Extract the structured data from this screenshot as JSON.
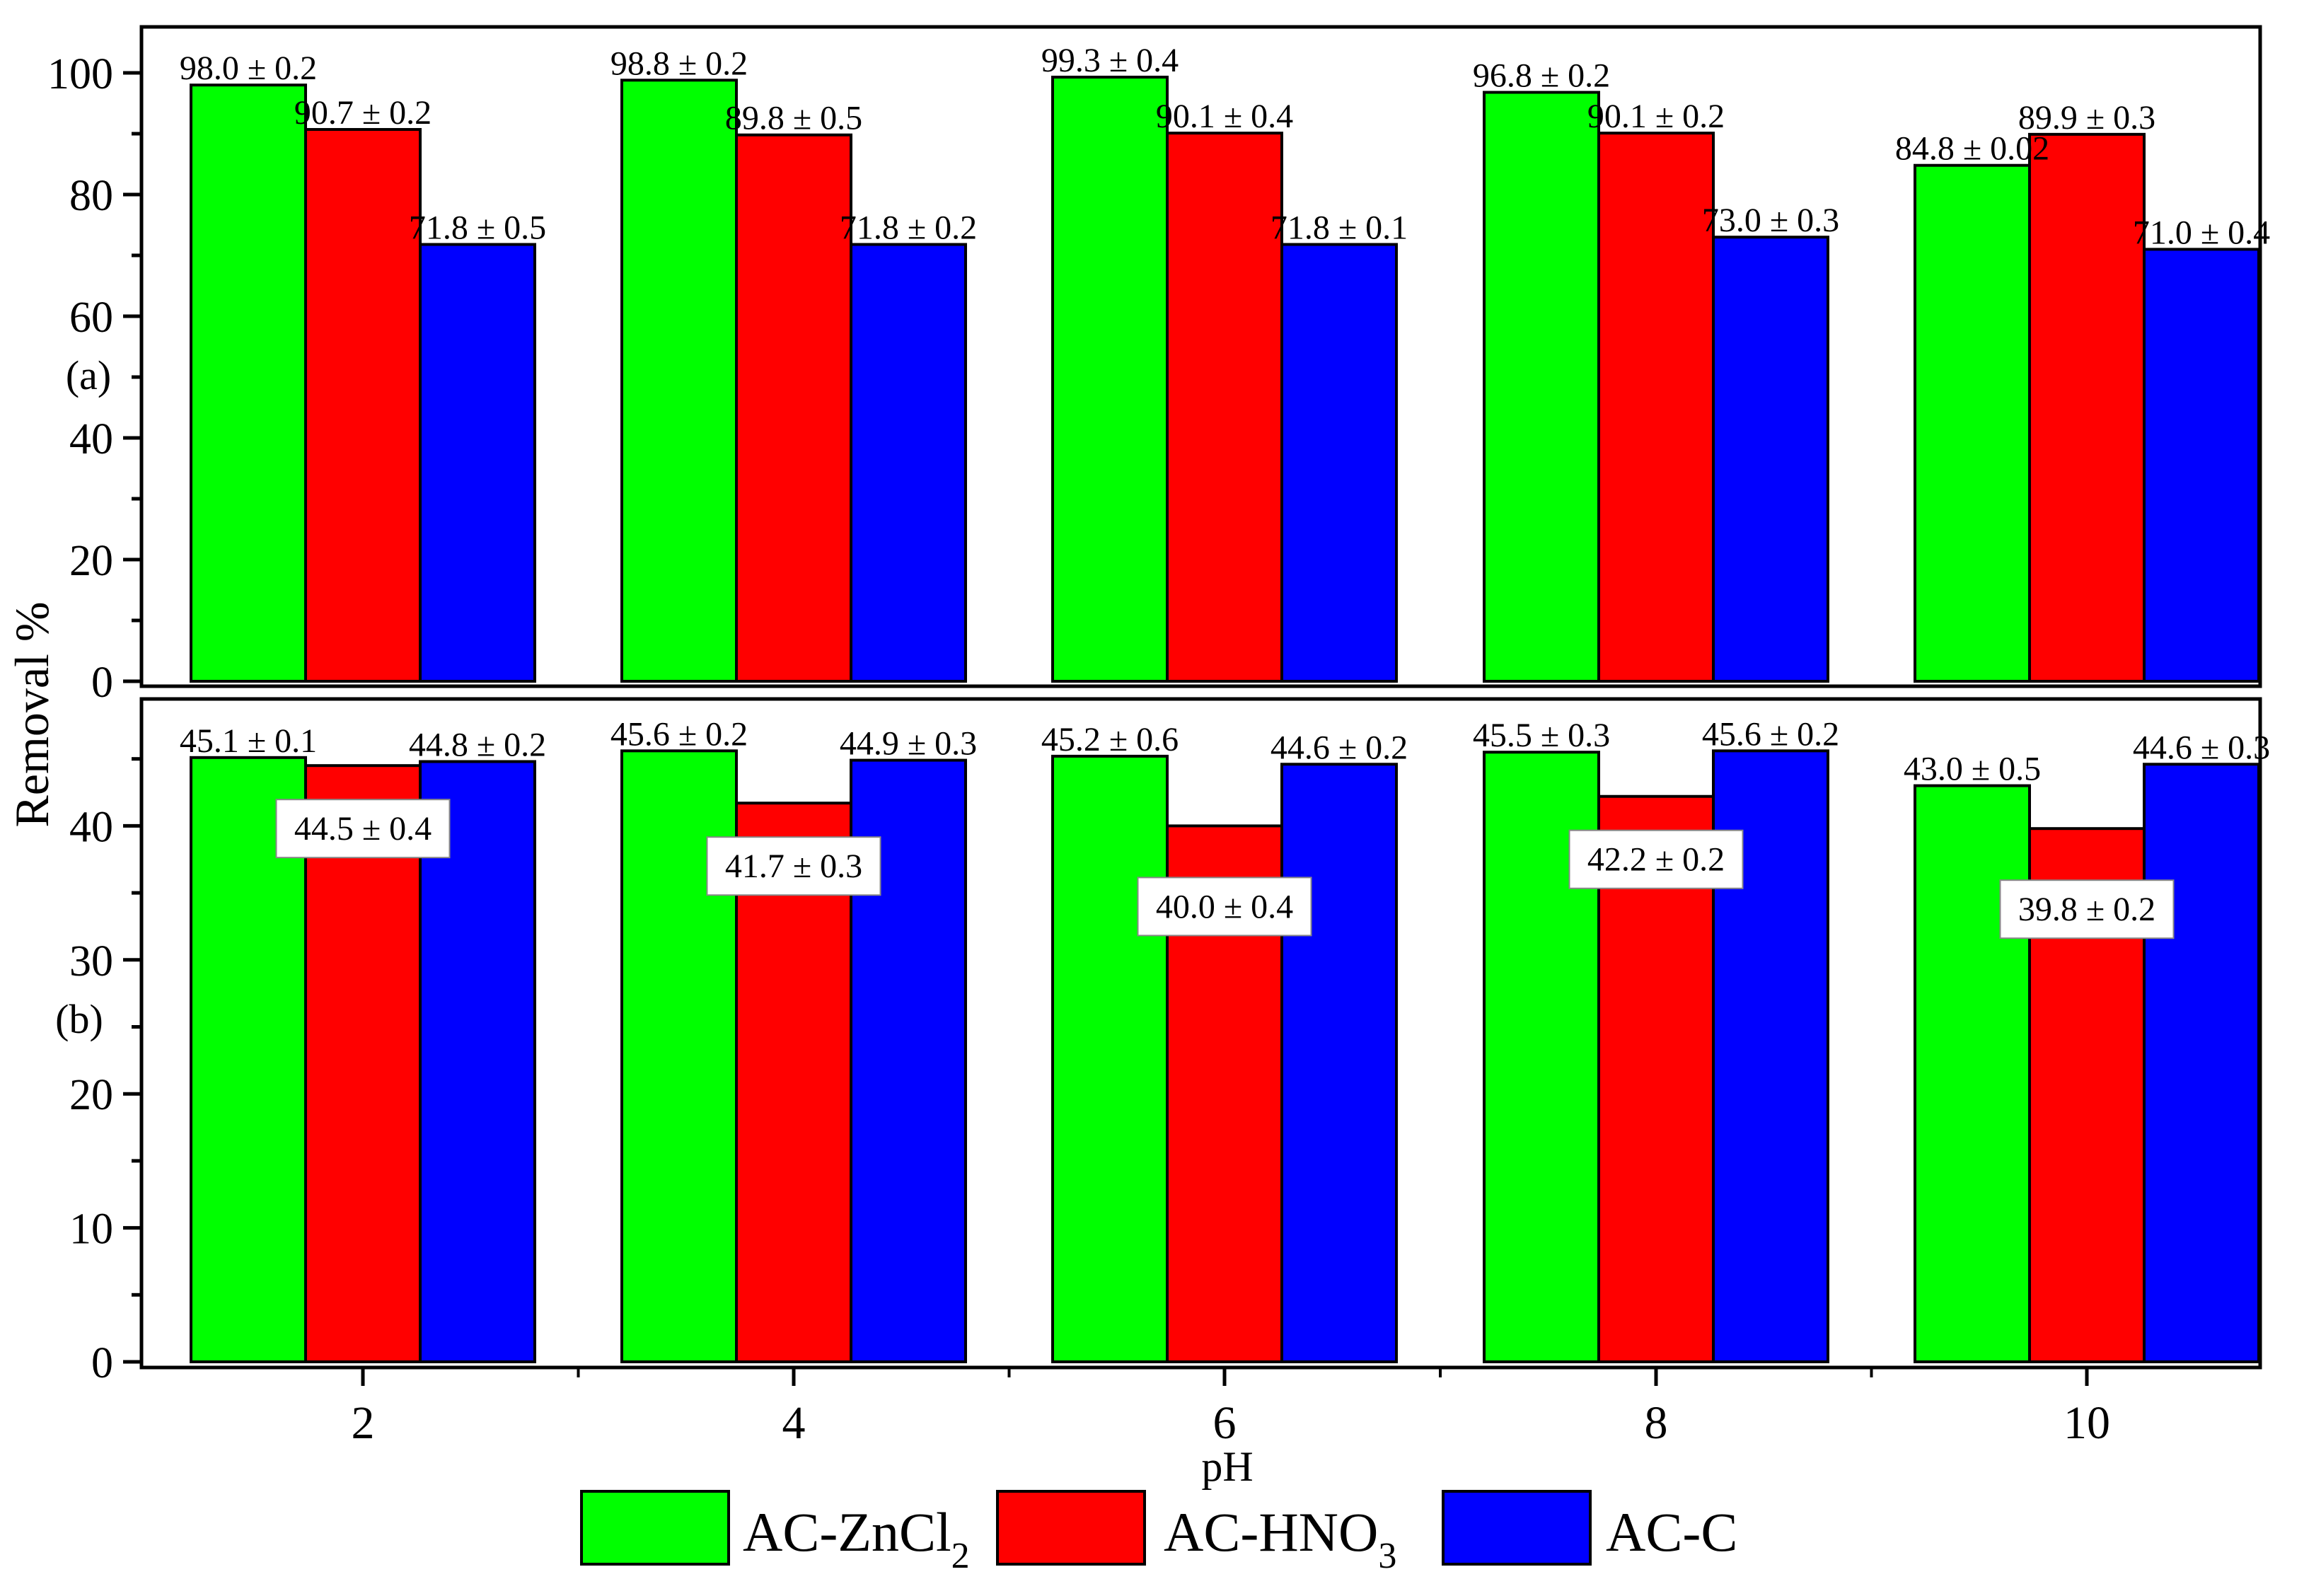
{
  "chart_data": [
    {
      "panel": "(a)",
      "type": "bar",
      "categories": [
        "2",
        "4",
        "6",
        "8",
        "10"
      ],
      "ylim": [
        0,
        108
      ],
      "yticks": [
        0,
        20,
        40,
        60,
        80,
        100
      ],
      "series": [
        {
          "name": "AC-ZnCl2",
          "values": [
            98.0,
            98.8,
            99.3,
            96.8,
            84.8
          ],
          "labels": [
            "98.0 ± 0.2",
            "98.8 ± 0.2",
            "99.3 ± 0.4",
            "96.8 ± 0.2",
            "84.8 ± 0.02"
          ]
        },
        {
          "name": "AC-HNO3",
          "values": [
            90.7,
            89.8,
            90.1,
            90.1,
            89.9
          ],
          "labels": [
            "90.7 ± 0.2",
            "89.8 ± 0.5",
            "90.1 ± 0.4",
            "90.1 ± 0.2",
            "89.9 ± 0.3"
          ]
        },
        {
          "name": "AC-C",
          "values": [
            71.8,
            71.8,
            71.8,
            73.0,
            71.0
          ],
          "labels": [
            "71.8 ± 0.5",
            "71.8 ± 0.2",
            "71.8 ± 0.1",
            "73.0 ± 0.3",
            "71.0 ± 0.4"
          ]
        }
      ]
    },
    {
      "panel": "(b)",
      "type": "bar",
      "categories": [
        "2",
        "4",
        "6",
        "8",
        "10"
      ],
      "ylim": [
        0,
        48
      ],
      "yticks": [
        0,
        10,
        20,
        30,
        40
      ],
      "series": [
        {
          "name": "AC-ZnCl2",
          "values": [
            45.1,
            45.6,
            45.2,
            45.5,
            43.0
          ],
          "labels": [
            "45.1 ± 0.1",
            "45.6 ± 0.2",
            "45.2 ± 0.6",
            "45.5 ± 0.3",
            "43.0 ± 0.5"
          ]
        },
        {
          "name": "AC-HNO3",
          "values": [
            44.5,
            41.7,
            40.0,
            42.2,
            39.8
          ],
          "labels": [
            "44.5 ± 0.4",
            "41.7 ± 0.3",
            "40.0 ± 0.4",
            "42.2 ± 0.2",
            "39.8 ± 0.2"
          ]
        },
        {
          "name": "AC-C",
          "values": [
            44.8,
            44.9,
            44.6,
            45.6,
            44.6
          ],
          "labels": [
            "44.8 ± 0.2",
            "44.9 ± 0.3",
            "44.6 ± 0.2",
            "45.6 ± 0.2",
            "44.6 ± 0.3"
          ]
        }
      ]
    }
  ],
  "axes": {
    "xlabel": "pH",
    "ylabel": "Removal %"
  },
  "legend": [
    {
      "main": "AC-ZnCl",
      "sub": "2"
    },
    {
      "main": "AC-HNO",
      "sub": "3"
    },
    {
      "main": "AC-C",
      "sub": ""
    }
  ],
  "colors": {
    "AC-ZnCl2": "#00ff00",
    "AC-HNO3": "#ff0000",
    "AC-C": "#0000ff",
    "axis": "#000000",
    "label_box": "#ffffff"
  }
}
